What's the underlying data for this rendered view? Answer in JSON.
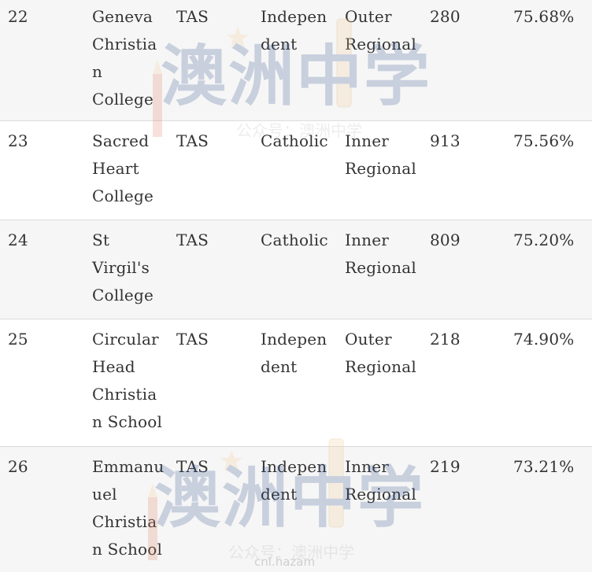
{
  "rows": [
    {
      "rank": "22",
      "name": "Geneva\nChristia\nn\nCollege",
      "state": "TAS",
      "sector": "Indepen\ndent",
      "region": "Outer\nRegional",
      "enrolment": "280",
      "score": "75.68%"
    },
    {
      "rank": "23",
      "name": "Sacred\nHeart\nCollege",
      "state": "TAS",
      "sector": "Catholic",
      "region": "Inner\nRegional",
      "enrolment": "913",
      "score": "75.56%"
    },
    {
      "rank": "24",
      "name": "St\nVirgil's\nCollege",
      "state": "TAS",
      "sector": "Catholic",
      "region": "Inner\nRegional",
      "enrolment": "809",
      "score": "75.20%"
    },
    {
      "rank": "25",
      "name": "Circular\nHead\nChristia\nn School",
      "state": "TAS",
      "sector": "Indepen\ndent",
      "region": "Outer\nRegional",
      "enrolment": "218",
      "score": "74.90%"
    },
    {
      "rank": "26",
      "name": "Emmanu\nuel\nChristia\nn School",
      "state": "TAS",
      "sector": "Indepen\ndent",
      "region": "Inner\nRegional",
      "enrolment": "219",
      "score": "73.21%"
    }
  ],
  "watermark": {
    "title": "澳洲中学",
    "subtitle": "公众号：澳洲中学"
  },
  "footer_mark": "cnl.hazam"
}
